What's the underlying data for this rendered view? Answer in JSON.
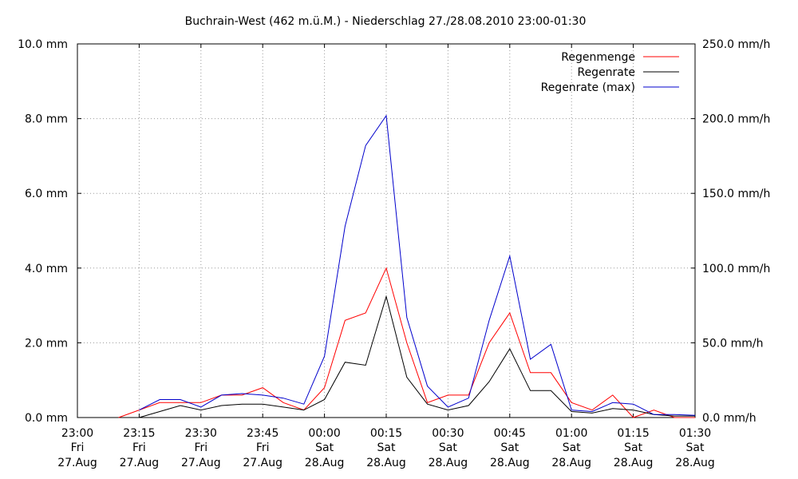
{
  "chart_data": {
    "type": "line",
    "title": "Buchrain-West (462 m.ü.M.) - Niederschlag 27./28.08.2010 23:00-01:30",
    "x_ticks": [
      {
        "time": "23:00",
        "day": "Fri",
        "date": "27.Aug"
      },
      {
        "time": "23:15",
        "day": "Fri",
        "date": "27.Aug"
      },
      {
        "time": "23:30",
        "day": "Fri",
        "date": "27.Aug"
      },
      {
        "time": "23:45",
        "day": "Fri",
        "date": "27.Aug"
      },
      {
        "time": "00:00",
        "day": "Sat",
        "date": "28.Aug"
      },
      {
        "time": "00:15",
        "day": "Sat",
        "date": "28.Aug"
      },
      {
        "time": "00:30",
        "day": "Sat",
        "date": "28.Aug"
      },
      {
        "time": "00:45",
        "day": "Sat",
        "date": "28.Aug"
      },
      {
        "time": "01:00",
        "day": "Sat",
        "date": "28.Aug"
      },
      {
        "time": "01:15",
        "day": "Sat",
        "date": "28.Aug"
      },
      {
        "time": "01:30",
        "day": "Sat",
        "date": "28.Aug"
      }
    ],
    "x_range": [
      "2010-08-27 23:00",
      "2010-08-28 01:30"
    ],
    "y_left": {
      "ticks": [
        "0.0 mm",
        "2.0 mm",
        "4.0 mm",
        "6.0 mm",
        "8.0 mm",
        "10.0 mm"
      ],
      "range": [
        0,
        10
      ]
    },
    "y_right": {
      "ticks": [
        "0.0 mm/h",
        "50.0 mm/h",
        "100.0 mm/h",
        "150.0 mm/h",
        "200.0 mm/h",
        "250.0 mm/h"
      ],
      "range": [
        0,
        250
      ]
    },
    "grid": true,
    "legend_position": "top-right",
    "series": [
      {
        "name": "Regenmenge",
        "axis": "left",
        "color": "#ff0000",
        "points": [
          [
            "2010-08-27 23:10",
            0.0
          ],
          [
            "2010-08-27 23:15",
            0.2
          ],
          [
            "2010-08-27 23:20",
            0.4
          ],
          [
            "2010-08-27 23:25",
            0.4
          ],
          [
            "2010-08-27 23:30",
            0.4
          ],
          [
            "2010-08-27 23:35",
            0.6
          ],
          [
            "2010-08-27 23:40",
            0.6
          ],
          [
            "2010-08-27 23:45",
            0.8
          ],
          [
            "2010-08-27 23:50",
            0.4
          ],
          [
            "2010-08-27 23:55",
            0.2
          ],
          [
            "2010-08-28 00:00",
            0.8
          ],
          [
            "2010-08-28 00:05",
            2.6
          ],
          [
            "2010-08-28 00:10",
            2.8
          ],
          [
            "2010-08-28 00:15",
            4.0
          ],
          [
            "2010-08-28 00:20",
            2.0
          ],
          [
            "2010-08-28 00:25",
            0.4
          ],
          [
            "2010-08-28 00:30",
            0.6
          ],
          [
            "2010-08-28 00:35",
            0.6
          ],
          [
            "2010-08-28 00:40",
            2.0
          ],
          [
            "2010-08-28 00:45",
            2.8
          ],
          [
            "2010-08-28 00:50",
            1.2
          ],
          [
            "2010-08-28 00:55",
            1.2
          ],
          [
            "2010-08-28 01:00",
            0.4
          ],
          [
            "2010-08-28 01:05",
            0.2
          ],
          [
            "2010-08-28 01:10",
            0.6
          ],
          [
            "2010-08-28 01:15",
            0.0
          ],
          [
            "2010-08-28 01:20",
            0.2
          ],
          [
            "2010-08-28 01:25",
            0.0
          ],
          [
            "2010-08-28 01:30",
            0.0
          ]
        ]
      },
      {
        "name": "Regenrate",
        "axis": "right",
        "color": "#000000",
        "points": [
          [
            "2010-08-27 23:15",
            0.0
          ],
          [
            "2010-08-27 23:20",
            4.0
          ],
          [
            "2010-08-27 23:25",
            8.0
          ],
          [
            "2010-08-27 23:30",
            5.0
          ],
          [
            "2010-08-27 23:35",
            8.0
          ],
          [
            "2010-08-27 23:40",
            9.0
          ],
          [
            "2010-08-27 23:45",
            9.0
          ],
          [
            "2010-08-27 23:50",
            7.0
          ],
          [
            "2010-08-27 23:55",
            5.0
          ],
          [
            "2010-08-28 00:00",
            12.0
          ],
          [
            "2010-08-28 00:05",
            37.0
          ],
          [
            "2010-08-28 00:10",
            35.0
          ],
          [
            "2010-08-28 00:15",
            81.0
          ],
          [
            "2010-08-28 00:20",
            27.0
          ],
          [
            "2010-08-28 00:25",
            9.0
          ],
          [
            "2010-08-28 00:30",
            5.0
          ],
          [
            "2010-08-28 00:35",
            8.0
          ],
          [
            "2010-08-28 00:40",
            24.0
          ],
          [
            "2010-08-28 00:45",
            46.0
          ],
          [
            "2010-08-28 00:50",
            18.0
          ],
          [
            "2010-08-28 00:55",
            18.0
          ],
          [
            "2010-08-28 01:00",
            4.0
          ],
          [
            "2010-08-28 01:05",
            3.0
          ],
          [
            "2010-08-28 01:10",
            6.0
          ],
          [
            "2010-08-28 01:15",
            5.0
          ],
          [
            "2010-08-28 01:20",
            2.0
          ],
          [
            "2010-08-28 01:25",
            1.0
          ],
          [
            "2010-08-28 01:30",
            1.0
          ]
        ]
      },
      {
        "name": "Regenrate (max)",
        "axis": "right",
        "color": "#0000cc",
        "points": [
          [
            "2010-08-27 23:15",
            5.0
          ],
          [
            "2010-08-27 23:20",
            12.0
          ],
          [
            "2010-08-27 23:25",
            12.0
          ],
          [
            "2010-08-27 23:30",
            7.0
          ],
          [
            "2010-08-27 23:35",
            15.0
          ],
          [
            "2010-08-27 23:40",
            16.0
          ],
          [
            "2010-08-27 23:45",
            15.0
          ],
          [
            "2010-08-27 23:50",
            13.0
          ],
          [
            "2010-08-27 23:55",
            9.0
          ],
          [
            "2010-08-28 00:00",
            41.0
          ],
          [
            "2010-08-28 00:05",
            128.0
          ],
          [
            "2010-08-28 00:10",
            182.0
          ],
          [
            "2010-08-28 00:15",
            202.0
          ],
          [
            "2010-08-28 00:20",
            67.0
          ],
          [
            "2010-08-28 00:25",
            21.0
          ],
          [
            "2010-08-28 00:30",
            7.0
          ],
          [
            "2010-08-28 00:35",
            13.0
          ],
          [
            "2010-08-28 00:40",
            65.0
          ],
          [
            "2010-08-28 00:45",
            108.0
          ],
          [
            "2010-08-28 00:50",
            39.0
          ],
          [
            "2010-08-28 00:55",
            49.0
          ],
          [
            "2010-08-28 01:00",
            5.0
          ],
          [
            "2010-08-28 01:05",
            4.0
          ],
          [
            "2010-08-28 01:10",
            10.0
          ],
          [
            "2010-08-28 01:15",
            9.0
          ],
          [
            "2010-08-28 01:20",
            2.0
          ],
          [
            "2010-08-28 01:25",
            2.0
          ],
          [
            "2010-08-28 01:30",
            1.5
          ]
        ]
      }
    ]
  }
}
